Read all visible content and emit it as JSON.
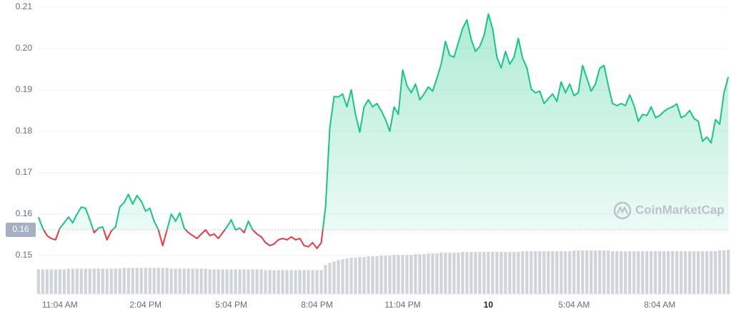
{
  "chart_data": {
    "type": "line",
    "x": [
      -0.75,
      -0.6,
      -0.45,
      -0.3,
      -0.15,
      0,
      0.15,
      0.3,
      0.45,
      0.6,
      0.75,
      0.9,
      1.05,
      1.2,
      1.35,
      1.5,
      1.65,
      1.8,
      1.95,
      2.1,
      2.25,
      2.4,
      2.55,
      2.7,
      2.85,
      3,
      3.15,
      3.3,
      3.45,
      3.6,
      3.75,
      3.9,
      4.05,
      4.2,
      4.35,
      4.5,
      4.65,
      4.8,
      4.95,
      5.1,
      5.25,
      5.4,
      5.55,
      5.7,
      5.85,
      6,
      6.15,
      6.3,
      6.45,
      6.6,
      6.75,
      6.9,
      7.05,
      7.2,
      7.35,
      7.5,
      7.65,
      7.8,
      7.95,
      8.1,
      8.25,
      8.4,
      8.55,
      8.7,
      8.85,
      9,
      9.15,
      9.3,
      9.45,
      9.6,
      9.75,
      9.9,
      10.05,
      10.2,
      10.35,
      10.5,
      10.65,
      10.8,
      10.95,
      11.1,
      11.25,
      11.4,
      11.55,
      11.7,
      11.85,
      12,
      12.15,
      12.3,
      12.45,
      12.6,
      12.75,
      12.9,
      13.05,
      13.2,
      13.35,
      13.5,
      13.65,
      13.8,
      13.95,
      14.1,
      14.25,
      14.4,
      14.55,
      14.7,
      14.85,
      15,
      15.15,
      15.3,
      15.45,
      15.6,
      15.75,
      15.9,
      16.05,
      16.2,
      16.35,
      16.5,
      16.65,
      16.8,
      16.95,
      17.1,
      17.25,
      17.4,
      17.55,
      17.7,
      17.85,
      18,
      18.15,
      18.3,
      18.45,
      18.6,
      18.75,
      18.9,
      19.05,
      19.2,
      19.35,
      19.5,
      19.65,
      19.8,
      19.95,
      20.1,
      20.25,
      20.4,
      20.55,
      20.7,
      20.85,
      21,
      21.15,
      21.3,
      21.45,
      21.6,
      21.75,
      21.9,
      22.05,
      22.2,
      22.35,
      22.5,
      22.65,
      22.8,
      22.95,
      23.1,
      23.25,
      23.4
    ],
    "values": [
      0.1593,
      0.1566,
      0.1548,
      0.1541,
      0.1538,
      0.1566,
      0.1579,
      0.1593,
      0.1579,
      0.16,
      0.1617,
      0.1614,
      0.1586,
      0.1555,
      0.1566,
      0.1569,
      0.1538,
      0.1559,
      0.1569,
      0.1617,
      0.1628,
      0.1648,
      0.1624,
      0.1645,
      0.1631,
      0.1607,
      0.1614,
      0.1583,
      0.1562,
      0.1524,
      0.1562,
      0.16,
      0.1583,
      0.1603,
      0.1566,
      0.1555,
      0.1548,
      0.1541,
      0.1552,
      0.1562,
      0.1548,
      0.1552,
      0.1541,
      0.1555,
      0.1569,
      0.1586,
      0.1562,
      0.1566,
      0.1555,
      0.1583,
      0.1562,
      0.1552,
      0.1545,
      0.1531,
      0.1524,
      0.1528,
      0.1538,
      0.1541,
      0.1538,
      0.1545,
      0.1538,
      0.1541,
      0.1524,
      0.1521,
      0.1531,
      0.1517,
      0.1531,
      0.1617,
      0.1807,
      0.1884,
      0.1883,
      0.189,
      0.1859,
      0.19,
      0.1841,
      0.1798,
      0.1859,
      0.1876,
      0.1859,
      0.1867,
      0.185,
      0.1828,
      0.18,
      0.1859,
      0.1841,
      0.1948,
      0.191,
      0.1893,
      0.1914,
      0.1876,
      0.189,
      0.1907,
      0.1897,
      0.1928,
      0.1962,
      0.2017,
      0.1983,
      0.1979,
      0.2014,
      0.2048,
      0.2069,
      0.2022,
      0.1993,
      0.2005,
      0.2031,
      0.2083,
      0.2048,
      0.1979,
      0.1953,
      0.1993,
      0.1962,
      0.1979,
      0.2024,
      0.1976,
      0.1953,
      0.1902,
      0.1893,
      0.1897,
      0.1867,
      0.1879,
      0.189,
      0.1872,
      0.1919,
      0.1893,
      0.1914,
      0.1886,
      0.1893,
      0.1959,
      0.1928,
      0.1897,
      0.1914,
      0.1952,
      0.1959,
      0.191,
      0.1867,
      0.1862,
      0.1867,
      0.1862,
      0.1888,
      0.1862,
      0.1824,
      0.1841,
      0.1838,
      0.1859,
      0.1833,
      0.1838,
      0.1848,
      0.1855,
      0.1859,
      0.1866,
      0.1833,
      0.1838,
      0.185,
      0.1831,
      0.1824,
      0.1776,
      0.1786,
      0.1772,
      0.1828,
      0.1817,
      0.1893,
      0.1931
    ],
    "volume": [
      34,
      34,
      34,
      34,
      34,
      34,
      34,
      35,
      35,
      35,
      35,
      35,
      35,
      35,
      35,
      35,
      35,
      35,
      35,
      35,
      36,
      36,
      36,
      36,
      36,
      36,
      36,
      36,
      36,
      36,
      36,
      35,
      35,
      35,
      35,
      35,
      35,
      35,
      35,
      35,
      34,
      34,
      34,
      34,
      34,
      34,
      34,
      34,
      34,
      34,
      34,
      34,
      34,
      33,
      33,
      33,
      33,
      33,
      33,
      33,
      33,
      33,
      33,
      33,
      33,
      33,
      33,
      40,
      43,
      45,
      47,
      48,
      49,
      50,
      50,
      51,
      51,
      52,
      52,
      52,
      53,
      53,
      53,
      54,
      54,
      54,
      54,
      54,
      55,
      55,
      55,
      56,
      56,
      56,
      57,
      57,
      57,
      57,
      57,
      58,
      58,
      58,
      58,
      58,
      58,
      58,
      58,
      58,
      58,
      58,
      58,
      58,
      58,
      59,
      59,
      59,
      59,
      59,
      59,
      59,
      59,
      59,
      59,
      59,
      59,
      60,
      60,
      60,
      60,
      60,
      60,
      60,
      60,
      60,
      59,
      59,
      59,
      59,
      59,
      59,
      59,
      59,
      59,
      59,
      59,
      59,
      59,
      59,
      59,
      59,
      59,
      59,
      59,
      59,
      59,
      59,
      59,
      59,
      59,
      60,
      60,
      61
    ],
    "xlim": [
      -0.77,
      23.42
    ],
    "ylim": [
      0.1407,
      0.2117
    ],
    "xticks": [
      {
        "value": 0,
        "label": "11:04 AM"
      },
      {
        "value": 3,
        "label": "2:04 PM"
      },
      {
        "value": 6,
        "label": "5:04 PM"
      },
      {
        "value": 9,
        "label": "8:04 PM"
      },
      {
        "value": 12,
        "label": "11:04 PM"
      },
      {
        "value": 15,
        "label": "10"
      },
      {
        "value": 18,
        "label": "5:04 AM"
      },
      {
        "value": 21,
        "label": "8:04 AM"
      }
    ],
    "yticks": [
      0.15,
      0.16,
      0.17,
      0.18,
      0.19,
      {
        "value": 0.2,
        "label": "0.20"
      },
      0.21
    ],
    "baseline": {
      "value": 0.1562,
      "label": "0.16"
    },
    "colors": {
      "up": "#16c784",
      "down": "#ea3943",
      "volume": "#cfd3da"
    },
    "grid": true,
    "watermark": "CoinMarketCap"
  }
}
